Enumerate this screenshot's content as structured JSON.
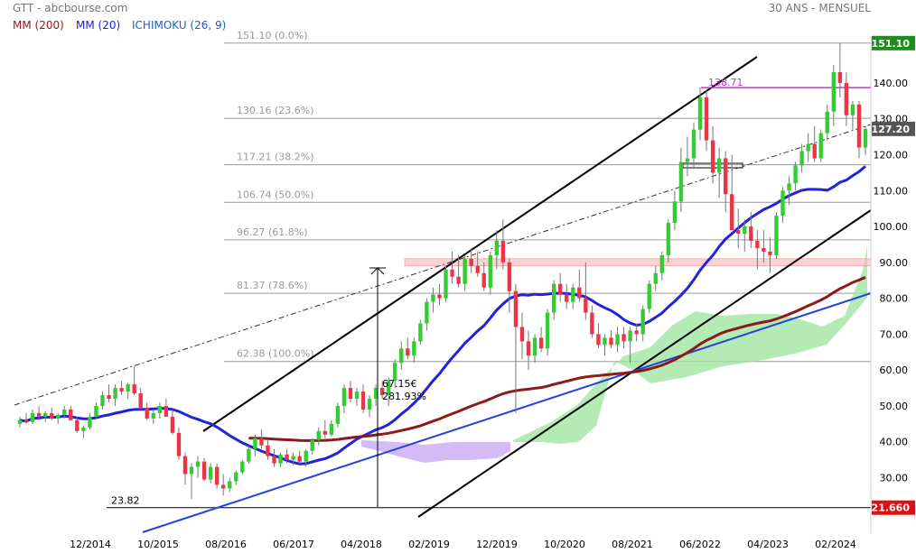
{
  "header": {
    "title": "GTT - abcbourse.com",
    "period": "30 ANS - MENSUEL"
  },
  "legend": [
    {
      "label": "MM (200)",
      "color": "#8b1a1a"
    },
    {
      "label": "MM (20)",
      "color": "#2222dd"
    },
    {
      "label": "ICHIMOKU (26, 9)",
      "color": "#1f5fbf"
    }
  ],
  "chart_data": {
    "type": "candlestick",
    "ylim": [
      21.66,
      151.1
    ],
    "x_ticks": [
      "12/2014",
      "10/2015",
      "08/2016",
      "06/2017",
      "04/2018",
      "02/2019",
      "12/2019",
      "10/2020",
      "08/2021",
      "06/2022",
      "04/2023",
      "02/2024"
    ],
    "y_ticks": [
      30,
      40,
      50,
      60,
      70,
      80,
      90,
      100,
      110,
      120,
      130,
      140
    ],
    "y_tick_labels": [
      "30.00",
      "40.00",
      "50.00",
      "60.00",
      "70.00",
      "80.00",
      "90.00",
      "100.00",
      "110.00",
      "120.00",
      "130.00",
      "140.00"
    ],
    "price_tags": [
      {
        "value": 151.1,
        "label": "151.10",
        "color": "#1e8c1e"
      },
      {
        "value": 127.2,
        "label": "127.20",
        "color": "#555555"
      },
      {
        "value": 21.66,
        "label": "21.660",
        "color": "#dd1111"
      }
    ],
    "fibonacci": [
      {
        "value": 151.1,
        "label": "151.10  (0.0%)"
      },
      {
        "value": 130.16,
        "label": "130.16  (23.6%)"
      },
      {
        "value": 117.21,
        "label": "117.21  (38.2%)"
      },
      {
        "value": 106.74,
        "label": "106.74  (50.0%)"
      },
      {
        "value": 96.27,
        "label": "96.27  (61.8%)"
      },
      {
        "value": 81.37,
        "label": "81.37  (78.6%)"
      },
      {
        "value": 62.38,
        "label": "62.38  (100.0%)"
      }
    ],
    "annotations": {
      "low_label": "23.82",
      "level_label": "138.71",
      "measure_value": "67.15€",
      "measure_pct": "281.93%"
    },
    "candles": [
      [
        45,
        47,
        44,
        46
      ],
      [
        46,
        48,
        45,
        45.5
      ],
      [
        45.5,
        49,
        45,
        48
      ],
      [
        48,
        50,
        46,
        47
      ],
      [
        47,
        48.5,
        45.5,
        48
      ],
      [
        48,
        49.5,
        46,
        46.5
      ],
      [
        46.5,
        48,
        45,
        47.5
      ],
      [
        47.5,
        50,
        46.5,
        49
      ],
      [
        49,
        50,
        47,
        46
      ],
      [
        46,
        47,
        42.5,
        43
      ],
      [
        43,
        44.5,
        41,
        44
      ],
      [
        44,
        48,
        43.5,
        47
      ],
      [
        47,
        51,
        46.5,
        50
      ],
      [
        50,
        54,
        49,
        53
      ],
      [
        53,
        56,
        51,
        52
      ],
      [
        52,
        56,
        50,
        55
      ],
      [
        55,
        57,
        53,
        54
      ],
      [
        54,
        56.5,
        52,
        56
      ],
      [
        56,
        61,
        53,
        53.5
      ],
      [
        53.5,
        55,
        49,
        49.5
      ],
      [
        49.5,
        51,
        46,
        46.5
      ],
      [
        46.5,
        49,
        45,
        48
      ],
      [
        48,
        51,
        46.5,
        50
      ],
      [
        50,
        52,
        47,
        47
      ],
      [
        47,
        49,
        42,
        42.5
      ],
      [
        42.5,
        44,
        35,
        36
      ],
      [
        36,
        37,
        28,
        31
      ],
      [
        31,
        34,
        24,
        33
      ],
      [
        33,
        36,
        30,
        34.5
      ],
      [
        34.5,
        35.5,
        29,
        29.5
      ],
      [
        29.5,
        34,
        28.5,
        33
      ],
      [
        33,
        34,
        27,
        28
      ],
      [
        28,
        31,
        25,
        27
      ],
      [
        27,
        30,
        26,
        29
      ],
      [
        29,
        32,
        28,
        31.5
      ],
      [
        31.5,
        35,
        31,
        34.5
      ],
      [
        34.5,
        39,
        34,
        38
      ],
      [
        38,
        42,
        36,
        41
      ],
      [
        41,
        43.5,
        38,
        39
      ],
      [
        39,
        40.5,
        35,
        36
      ],
      [
        36,
        38,
        33,
        34
      ],
      [
        34,
        37,
        33,
        36.5
      ],
      [
        36.5,
        38,
        34,
        35
      ],
      [
        35,
        37,
        33.5,
        36
      ],
      [
        36,
        37.5,
        34,
        34.5
      ],
      [
        34.5,
        38,
        33,
        37.5
      ],
      [
        37.5,
        41,
        36.5,
        40.5
      ],
      [
        40.5,
        44,
        39,
        43
      ],
      [
        43,
        46,
        41,
        42
      ],
      [
        42,
        46,
        41.5,
        45
      ],
      [
        45,
        51,
        44,
        50
      ],
      [
        50,
        56,
        48,
        55
      ],
      [
        55,
        57,
        51,
        52
      ],
      [
        52,
        55,
        50,
        54
      ],
      [
        54,
        56,
        48,
        49
      ],
      [
        49,
        53,
        47,
        52
      ],
      [
        52,
        56,
        50,
        55
      ],
      [
        55,
        57,
        52,
        53
      ],
      [
        53,
        58,
        50,
        57
      ],
      [
        57,
        63,
        55,
        62
      ],
      [
        62,
        68,
        60,
        66
      ],
      [
        66,
        69,
        63,
        64
      ],
      [
        64,
        69,
        62,
        68
      ],
      [
        68,
        74,
        67,
        73
      ],
      [
        73,
        80,
        71,
        79
      ],
      [
        79,
        83,
        76,
        81
      ],
      [
        81,
        84,
        78,
        80
      ],
      [
        80,
        89,
        79,
        88
      ],
      [
        88,
        93,
        84,
        86
      ],
      [
        86,
        92,
        83,
        84
      ],
      [
        84,
        92,
        82,
        91
      ],
      [
        91,
        94,
        87,
        89
      ],
      [
        89,
        93,
        86,
        87
      ],
      [
        87,
        90,
        82,
        83
      ],
      [
        83,
        93,
        81,
        92
      ],
      [
        92,
        99,
        88,
        96
      ],
      [
        96,
        102,
        88,
        90
      ],
      [
        90,
        91,
        76,
        82
      ],
      [
        82,
        84,
        48,
        72
      ],
      [
        72,
        76,
        63,
        68
      ],
      [
        68,
        71,
        60,
        64
      ],
      [
        64,
        70,
        62,
        69
      ],
      [
        69,
        72,
        65,
        66
      ],
      [
        66,
        77,
        64,
        76
      ],
      [
        76,
        85,
        74,
        84
      ],
      [
        84,
        87,
        79,
        81
      ],
      [
        81,
        84,
        77,
        79
      ],
      [
        79,
        84,
        77,
        83
      ],
      [
        83,
        88,
        79,
        80
      ],
      [
        80,
        90,
        74,
        76
      ],
      [
        76,
        78,
        69,
        70
      ],
      [
        70,
        73,
        66,
        67
      ],
      [
        67,
        70,
        64,
        69
      ],
      [
        69,
        71,
        66,
        67
      ],
      [
        67,
        72,
        65,
        70
      ],
      [
        70,
        72,
        66,
        68
      ],
      [
        68,
        72,
        62,
        71
      ],
      [
        71,
        73,
        68,
        70
      ],
      [
        70,
        78,
        68,
        77
      ],
      [
        77,
        85,
        76,
        84
      ],
      [
        84,
        89,
        82,
        87
      ],
      [
        87,
        93,
        85,
        92
      ],
      [
        92,
        102,
        90,
        101
      ],
      [
        101,
        110,
        99,
        107
      ],
      [
        107,
        122,
        104,
        118
      ],
      [
        118,
        125,
        114,
        119
      ],
      [
        119,
        129,
        116,
        127
      ],
      [
        127,
        138.71,
        124,
        136
      ],
      [
        136,
        138,
        121,
        124
      ],
      [
        124,
        128,
        112,
        115
      ],
      [
        115,
        122,
        108,
        119
      ],
      [
        119,
        121,
        104,
        109
      ],
      [
        109,
        120,
        99,
        99
      ],
      [
        99,
        105,
        94,
        98
      ],
      [
        98,
        102,
        93,
        100
      ],
      [
        100,
        104,
        94,
        96
      ],
      [
        96,
        99,
        88,
        94
      ],
      [
        94,
        99,
        90,
        93
      ],
      [
        93,
        97,
        87,
        92
      ],
      [
        92,
        104,
        91,
        103
      ],
      [
        103,
        111,
        101,
        110
      ],
      [
        110,
        114,
        106,
        112
      ],
      [
        112,
        118,
        110,
        117
      ],
      [
        117,
        123,
        115,
        121
      ],
      [
        121,
        126,
        118,
        123
      ],
      [
        123,
        128,
        118,
        119
      ],
      [
        119,
        127,
        118,
        126
      ],
      [
        126,
        134,
        124,
        132
      ],
      [
        132,
        145,
        128,
        143
      ],
      [
        143,
        151.1,
        136,
        140
      ],
      [
        140,
        143,
        128,
        131
      ],
      [
        131,
        135,
        127,
        134
      ],
      [
        134,
        135,
        119,
        122
      ],
      [
        122,
        128,
        120,
        127.2
      ]
    ]
  }
}
